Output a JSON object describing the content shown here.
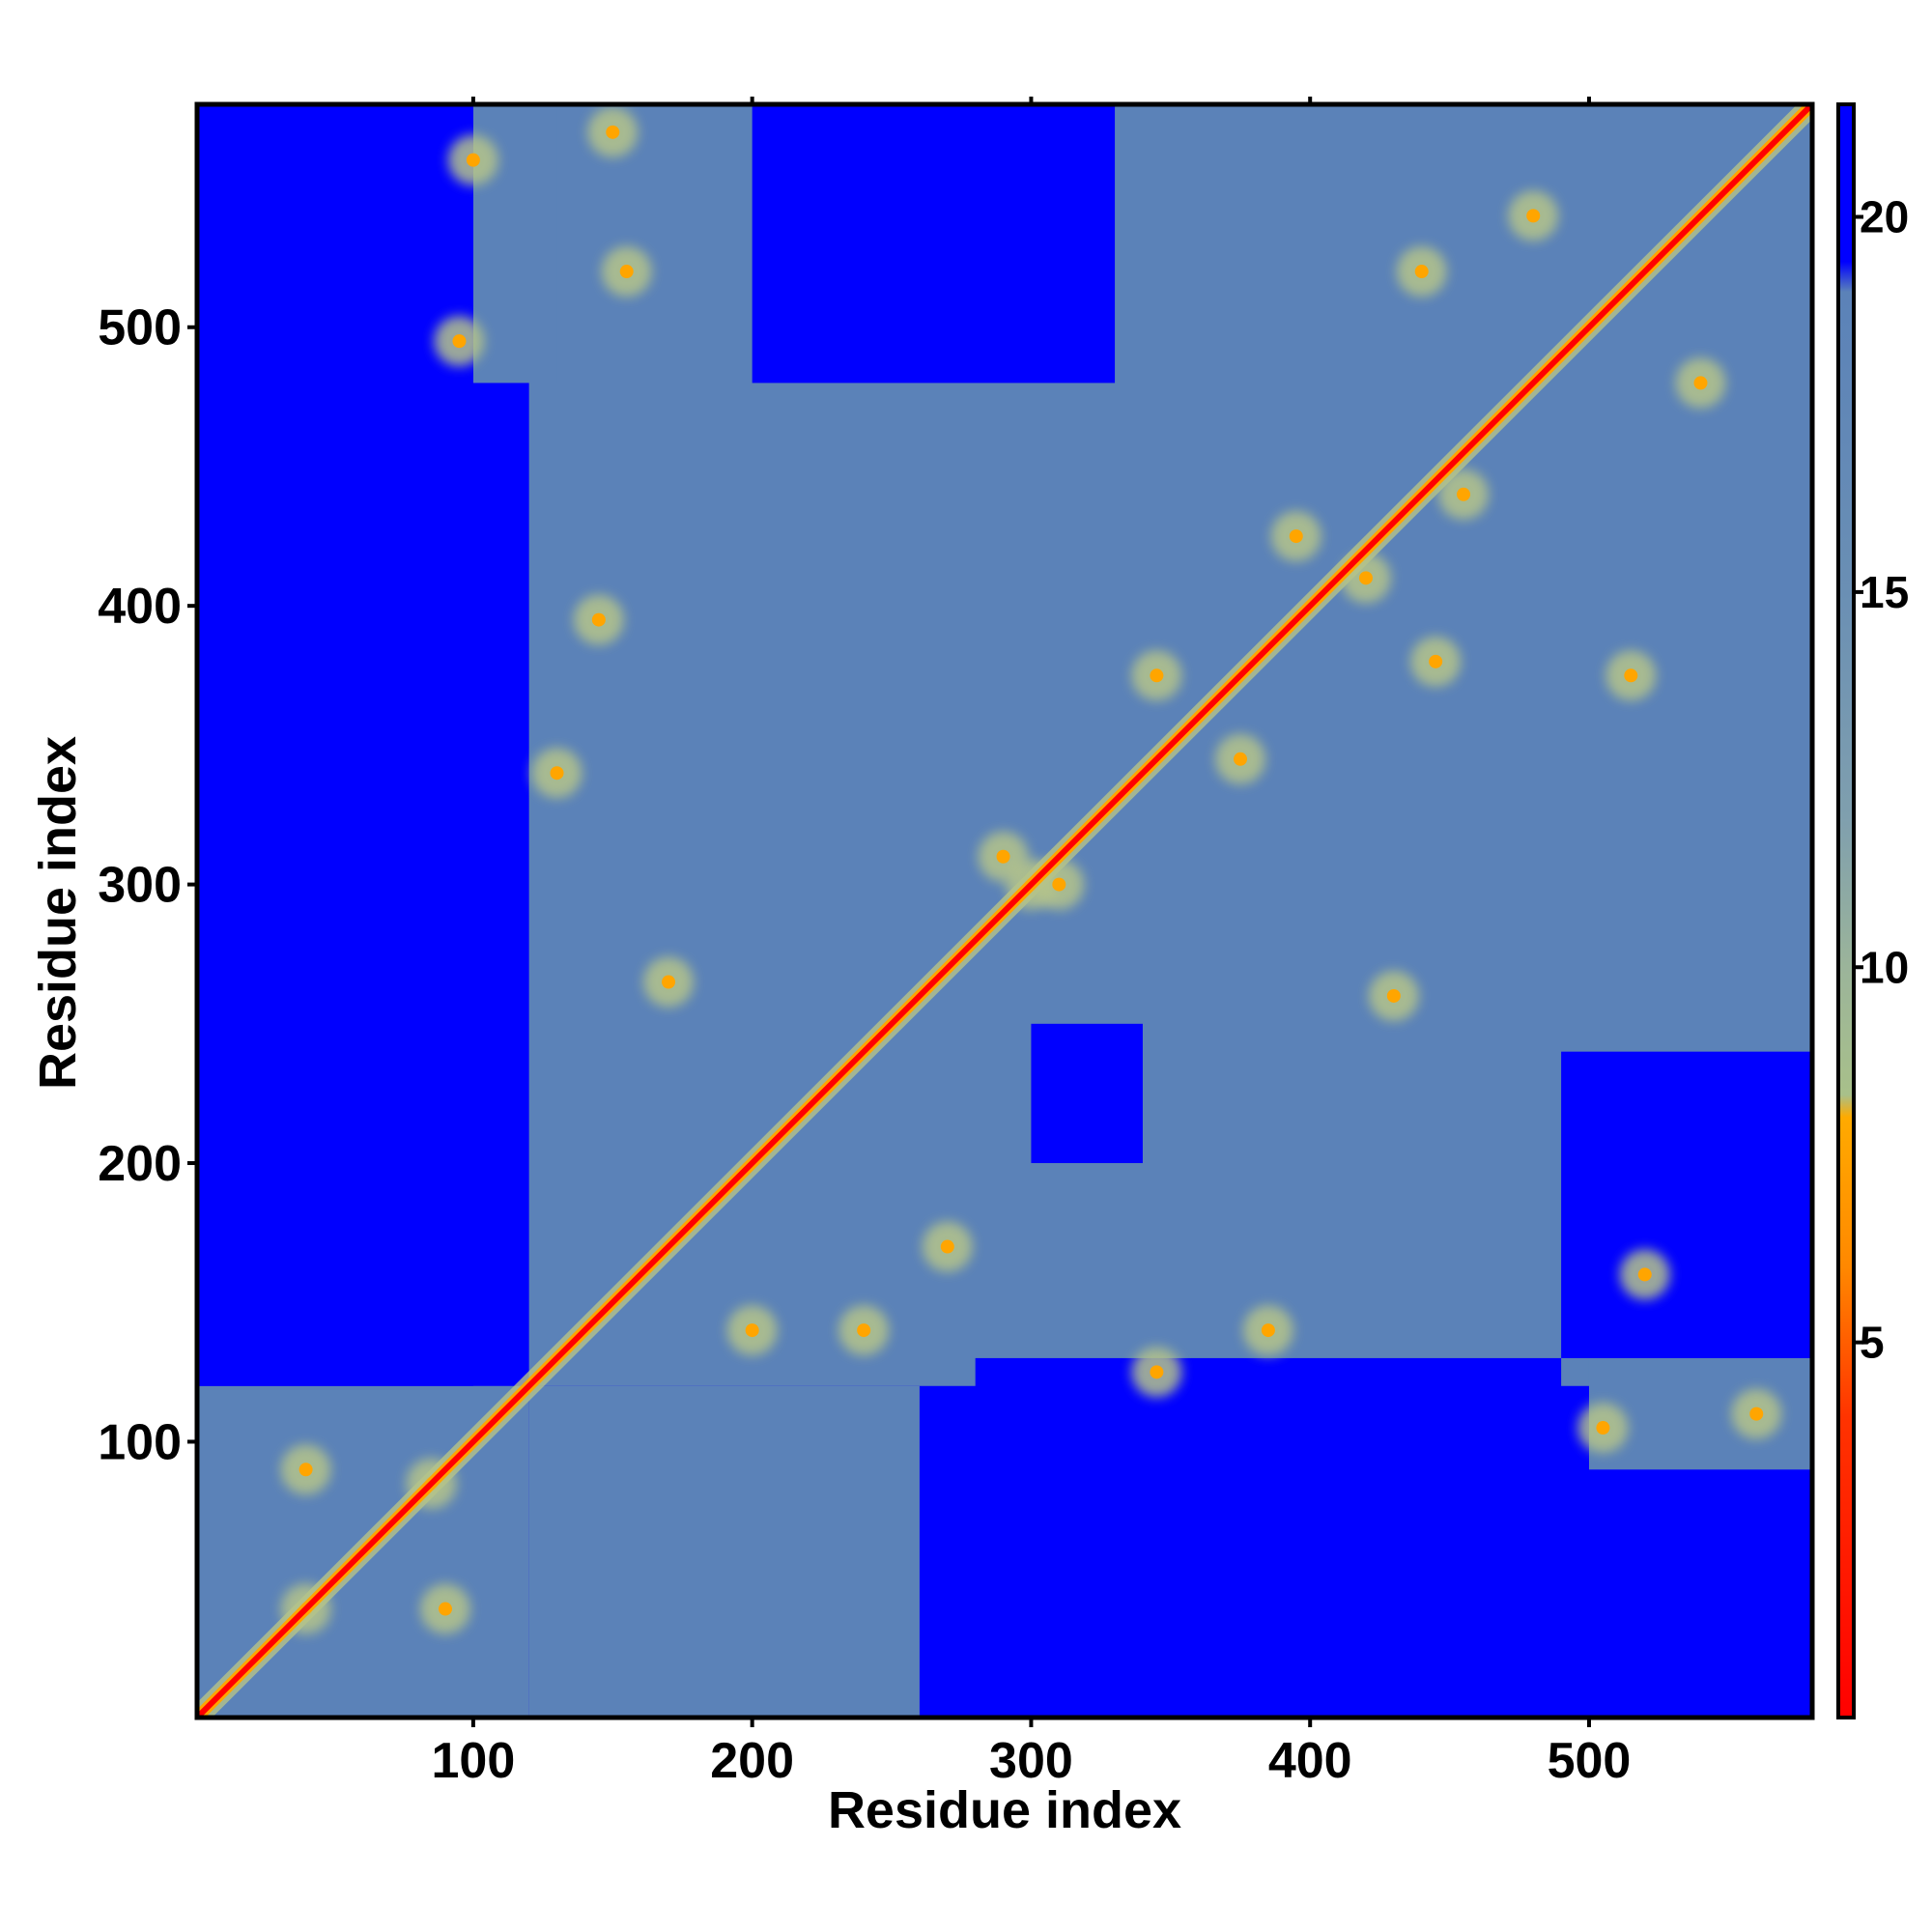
{
  "chart_data": {
    "type": "heatmap",
    "xlabel": "Residue index",
    "ylabel": "Residue index",
    "xlim": [
      1,
      580
    ],
    "ylim": [
      1,
      580
    ],
    "x_ticks": [
      100,
      200,
      300,
      400,
      500
    ],
    "y_ticks": [
      100,
      200,
      300,
      400,
      500
    ],
    "colorbar": {
      "range": [
        0,
        21.5
      ],
      "ticks": [
        5,
        10,
        15,
        20
      ],
      "stops": [
        {
          "value": 0,
          "color": "#ff0000"
        },
        {
          "value": 4,
          "color": "#ff3300"
        },
        {
          "value": 6,
          "color": "#ff8800"
        },
        {
          "value": 8,
          "color": "#ffaa00"
        },
        {
          "value": 8.3,
          "color": "#a8c08a"
        },
        {
          "value": 10,
          "color": "#9bb49a"
        },
        {
          "value": 12,
          "color": "#7f9fae"
        },
        {
          "value": 15,
          "color": "#6a8fb4"
        },
        {
          "value": 19,
          "color": "#5b82b8"
        },
        {
          "value": 19.4,
          "color": "#0000ff"
        },
        {
          "value": 21.5,
          "color": "#0000ff"
        }
      ]
    },
    "colors": {
      "far": "#0000ff",
      "mid": "#5b82b8",
      "near": "#b5c48a",
      "contact": "#ffa500",
      "diagonal": "#ff0000"
    },
    "domain_blocks": [
      {
        "x": [
          1,
          120
        ],
        "y": [
          1,
          120
        ],
        "level": "mid"
      },
      {
        "x": [
          120,
          580
        ],
        "y": [
          120,
          580
        ],
        "level": "mid"
      },
      {
        "x": [
          100,
          130
        ],
        "y": [
          480,
          580
        ],
        "level": "mid"
      },
      {
        "x": [
          500,
          580
        ],
        "y": [
          90,
          130
        ],
        "level": "mid"
      },
      {
        "x": [
          120,
          260
        ],
        "y": [
          1,
          120
        ],
        "level": "mid"
      }
    ],
    "voids": [
      {
        "x": [
          490,
          580
        ],
        "y": [
          130,
          240
        ]
      },
      {
        "x": [
          280,
          490
        ],
        "y": [
          1,
          130
        ]
      },
      {
        "x": [
          200,
          330
        ],
        "y": [
          480,
          580
        ]
      },
      {
        "x": [
          300,
          340
        ],
        "y": [
          200,
          250
        ]
      },
      {
        "x": [
          1,
          100
        ],
        "y": [
          120,
          580
        ]
      }
    ],
    "contacts": [
      {
        "x": 85,
        "y": 85
      },
      {
        "x": 40,
        "y": 40
      },
      {
        "x": 300,
        "y": 300
      },
      {
        "x": 310,
        "y": 300
      },
      {
        "x": 290,
        "y": 310
      },
      {
        "x": 130,
        "y": 340
      },
      {
        "x": 145,
        "y": 395
      },
      {
        "x": 270,
        "y": 170
      },
      {
        "x": 170,
        "y": 265
      },
      {
        "x": 345,
        "y": 125
      },
      {
        "x": 440,
        "y": 520
      },
      {
        "x": 540,
        "y": 480
      },
      {
        "x": 480,
        "y": 540
      },
      {
        "x": 100,
        "y": 560
      },
      {
        "x": 95,
        "y": 495
      },
      {
        "x": 155,
        "y": 520
      },
      {
        "x": 150,
        "y": 570
      },
      {
        "x": 505,
        "y": 105
      },
      {
        "x": 560,
        "y": 110
      },
      {
        "x": 520,
        "y": 160
      },
      {
        "x": 375,
        "y": 345
      },
      {
        "x": 345,
        "y": 375
      },
      {
        "x": 200,
        "y": 140
      },
      {
        "x": 240,
        "y": 140
      },
      {
        "x": 430,
        "y": 260
      },
      {
        "x": 385,
        "y": 140
      },
      {
        "x": 40,
        "y": 90
      },
      {
        "x": 90,
        "y": 40
      },
      {
        "x": 515,
        "y": 375
      },
      {
        "x": 445,
        "y": 380
      },
      {
        "x": 420,
        "y": 410
      },
      {
        "x": 395,
        "y": 425
      },
      {
        "x": 455,
        "y": 440
      }
    ]
  }
}
